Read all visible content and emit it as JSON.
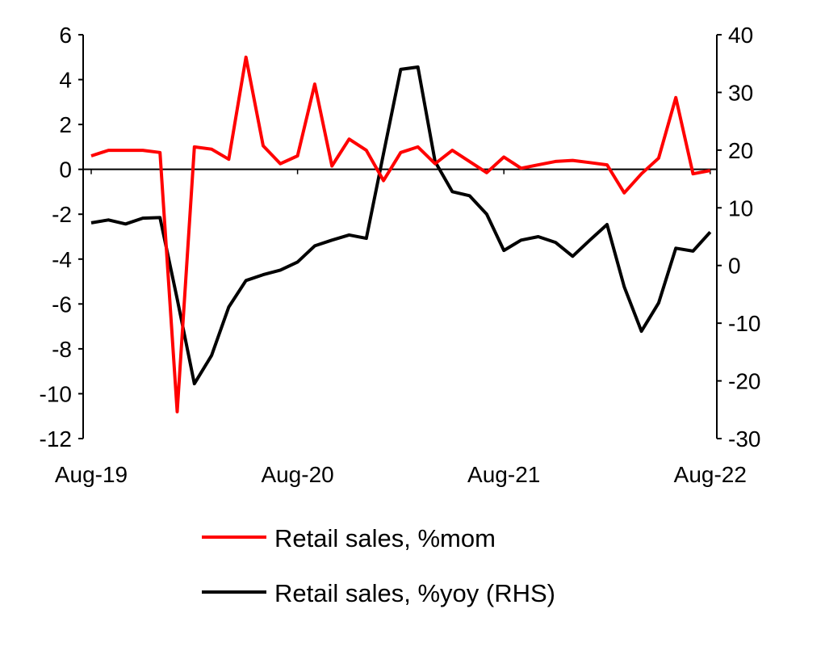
{
  "chart_data": {
    "type": "line",
    "title": "",
    "x": [
      "Aug-19",
      "Sep-19",
      "Oct-19",
      "Nov-19",
      "Dec-19",
      "Jan-20",
      "Feb-20",
      "Mar-20",
      "Apr-20",
      "May-20",
      "Jun-20",
      "Jul-20",
      "Aug-20",
      "Sep-20",
      "Oct-20",
      "Nov-20",
      "Dec-20",
      "Jan-21",
      "Feb-21",
      "Mar-21",
      "Apr-21",
      "May-21",
      "Jun-21",
      "Jul-21",
      "Aug-21",
      "Sep-21",
      "Oct-21",
      "Nov-21",
      "Dec-21",
      "Jan-22",
      "Feb-22",
      "Mar-22",
      "Apr-22",
      "May-22",
      "Jun-22",
      "Jul-22",
      "Aug-22"
    ],
    "x_tick_labels": [
      "Aug-19",
      "Aug-20",
      "Aug-21",
      "Aug-22"
    ],
    "left_axis": {
      "ylim": [
        -12,
        6
      ],
      "ticks": [
        "6",
        "4",
        "2",
        "0",
        "-2",
        "-4",
        "-6",
        "-8",
        "-10",
        "-12"
      ]
    },
    "right_axis": {
      "ylim": [
        -30,
        40
      ],
      "ticks": [
        "40",
        "30",
        "20",
        "10",
        "0",
        "-10",
        "-20",
        "-30"
      ]
    },
    "series": [
      {
        "name": "Retail sales, %mom",
        "axis": "left",
        "color": "#ff0000",
        "values": [
          0.6,
          0.85,
          0.85,
          0.85,
          0.75,
          -10.8,
          1.0,
          0.9,
          0.45,
          5.0,
          1.05,
          0.25,
          0.6,
          3.8,
          0.15,
          1.35,
          0.85,
          -0.5,
          0.75,
          1.0,
          0.25,
          0.85,
          0.35,
          -0.15,
          0.55,
          0.05,
          0.2,
          0.35,
          0.4,
          0.3,
          0.2,
          -1.05,
          -0.2,
          0.5,
          3.2,
          -0.2,
          -0.05
        ]
      },
      {
        "name": "Retail sales, %yoy (RHS)",
        "axis": "right",
        "color": "#000000",
        "values": [
          7.4,
          7.9,
          7.2,
          8.2,
          8.3,
          -5.8,
          -20.5,
          -15.6,
          -7.2,
          -2.6,
          -1.6,
          -0.8,
          0.6,
          3.4,
          4.4,
          5.3,
          4.7,
          19.4,
          34.0,
          34.4,
          18.0,
          12.8,
          12.1,
          8.9,
          2.6,
          4.4,
          5.0,
          4.0,
          1.6,
          4.4,
          7.1,
          -3.7,
          -11.4,
          -6.5,
          3.0,
          2.5,
          5.8
        ]
      }
    ],
    "legend_position": "bottom",
    "grid": false
  }
}
